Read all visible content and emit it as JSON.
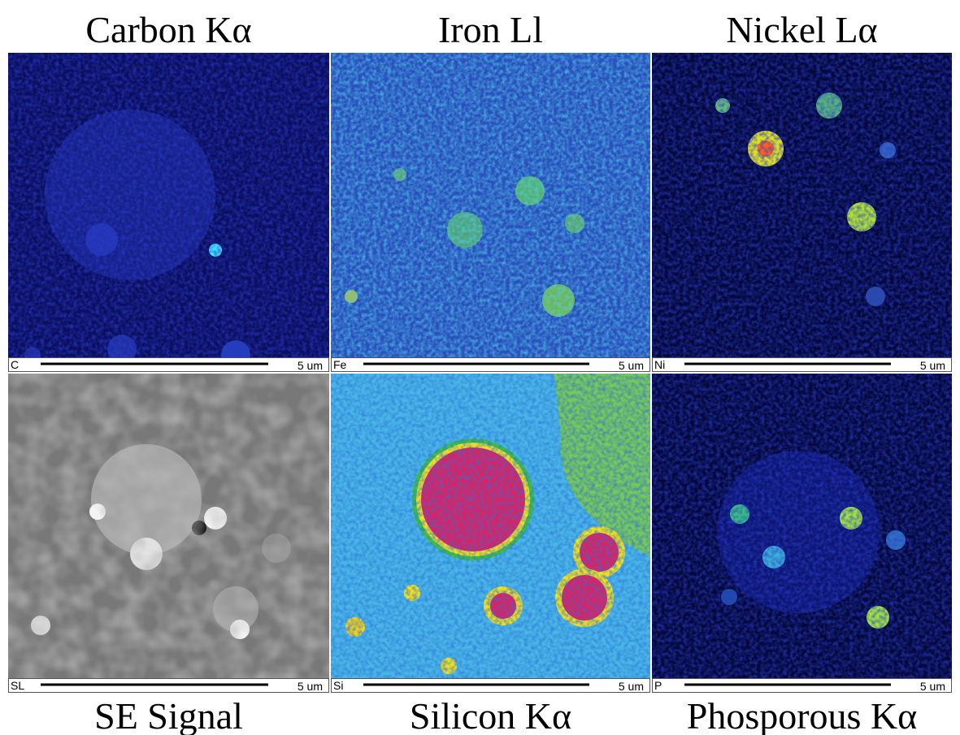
{
  "panels": [
    {
      "title": "Carbon Kα",
      "element": "C",
      "scale_label": "5 um"
    },
    {
      "title": "Iron Ll",
      "element": "Fe",
      "scale_label": "5 um"
    },
    {
      "title": "Nickel Lα",
      "element": "Ni",
      "scale_label": "5 um"
    },
    {
      "title": "SE Signal",
      "element": "SL",
      "scale_label": "5 um"
    },
    {
      "title": "Silicon Kα",
      "element": "Si",
      "scale_label": "5 um"
    },
    {
      "title": "Phosporous Kα",
      "element": "P",
      "scale_label": "5 um"
    }
  ]
}
